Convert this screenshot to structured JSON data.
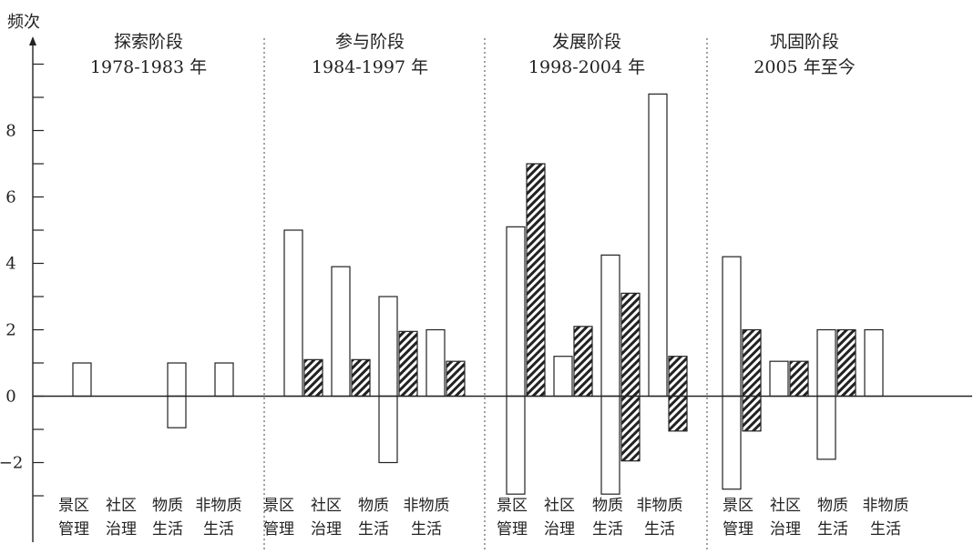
{
  "chart_data": {
    "type": "bar",
    "ylabel": "频次",
    "ylim": [
      -3.4,
      11
    ],
    "yticks": [
      -2,
      0,
      2,
      4,
      6,
      8
    ],
    "phases": [
      {
        "name": "探索阶段",
        "years": "1978-1983 年"
      },
      {
        "name": "参与阶段",
        "years": "1984-1997 年"
      },
      {
        "name": "发展阶段",
        "years": "1998-2004 年"
      },
      {
        "name": "巩固阶段",
        "years": "2005 年至今"
      }
    ],
    "categories": [
      {
        "line1": "景区",
        "line2": "管理"
      },
      {
        "line1": "社区",
        "line2": "治理"
      },
      {
        "line1": "物质",
        "line2": "生活"
      },
      {
        "line1": "非物质",
        "line2": "生活"
      }
    ],
    "series": [
      {
        "style": "white",
        "positive": [
          [
            1,
            0,
            1,
            1
          ],
          [
            5,
            3.9,
            3,
            2
          ],
          [
            5.1,
            1.2,
            4.25,
            9.1
          ],
          [
            4.2,
            1.05,
            2,
            2
          ]
        ],
        "negative": [
          [
            0,
            0,
            -0.95,
            0
          ],
          [
            0,
            0,
            -2,
            0
          ],
          [
            -2.95,
            0,
            -2.95,
            0
          ],
          [
            -2.8,
            0,
            -1.9,
            0
          ]
        ]
      },
      {
        "style": "hatched",
        "positive": [
          [
            0,
            0,
            0,
            0
          ],
          [
            1.1,
            1.1,
            1.95,
            1.05
          ],
          [
            7,
            2.1,
            3.1,
            1.2
          ],
          [
            2,
            1.05,
            2,
            0
          ]
        ],
        "negative": [
          [
            0,
            0,
            0,
            0
          ],
          [
            0,
            0,
            0,
            0
          ],
          [
            0,
            0,
            -1.95,
            -1.05
          ],
          [
            -1.05,
            0,
            0,
            0
          ]
        ]
      }
    ]
  }
}
